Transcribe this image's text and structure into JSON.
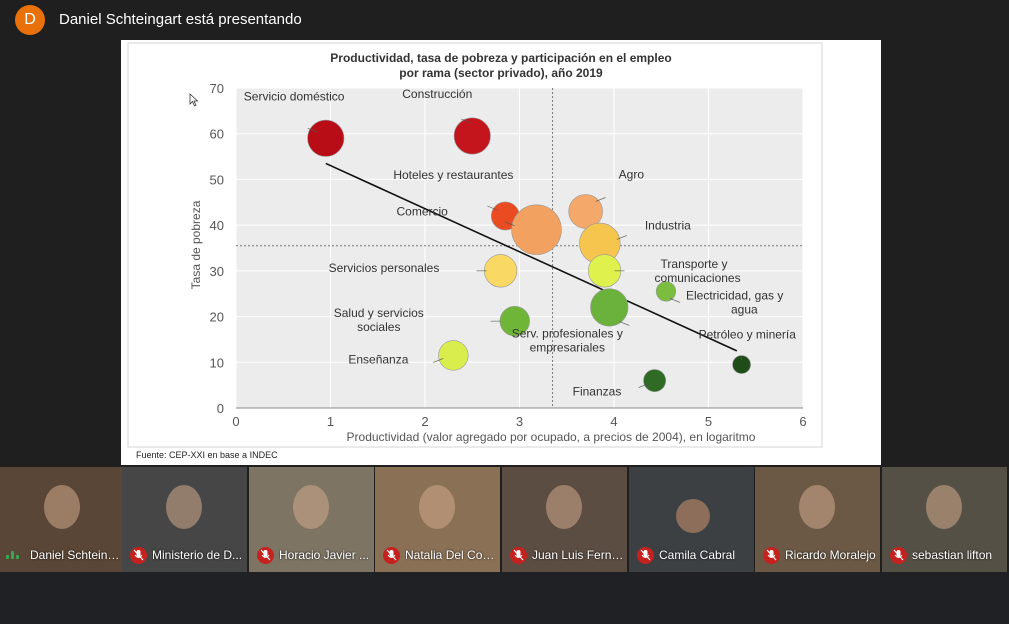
{
  "meeting": {
    "presenter_initial": "D",
    "presenter_text": "Daniel Schteingart está presentando"
  },
  "slide": {
    "title_line1": "Productividad, tasa de pobreza y participación en el empleo",
    "title_line2": "por rama (sector privado), año 2019",
    "source": "Fuente: CEP-XXI en base a INDEC"
  },
  "chart_data": {
    "type": "scatter",
    "xlabel": "Productividad (valor agregado por ocupado, a precios de 2004), en logaritmo",
    "ylabel": "Tasa de pobreza",
    "xlim": [
      0,
      6
    ],
    "ylim": [
      0,
      70
    ],
    "x_ticks": [
      "0",
      "1",
      "2",
      "3",
      "4",
      "5",
      "6"
    ],
    "y_ticks": [
      "0",
      "10",
      "20",
      "30",
      "40",
      "50",
      "60",
      "70"
    ],
    "grid": true,
    "reference_lines": {
      "vertical_x": 3.35,
      "horizontal_y": 35.5
    },
    "trendline": {
      "x": [
        0.95,
        5.3
      ],
      "y": [
        53.5,
        12.5
      ]
    },
    "points": [
      {
        "label": "Servicio doméstico",
        "x": 0.95,
        "y": 59,
        "size": 12,
        "color": "#b80d16"
      },
      {
        "label": "Construcción",
        "x": 2.5,
        "y": 59.5,
        "size": 12,
        "color": "#c4151d"
      },
      {
        "label": "Hoteles y restaurantes",
        "x": 2.85,
        "y": 42,
        "size": 6,
        "color": "#ea4b21"
      },
      {
        "label": "Comercio",
        "x": 3.18,
        "y": 39,
        "size": 26,
        "color": "#f2a160"
      },
      {
        "label": "Agro",
        "x": 3.7,
        "y": 43,
        "size": 10,
        "color": "#f4a86a"
      },
      {
        "label": "Industria",
        "x": 3.85,
        "y": 36,
        "size": 16,
        "color": "#f6c54e"
      },
      {
        "label": "Servicios personales",
        "x": 2.8,
        "y": 30,
        "size": 9,
        "color": "#f9d864"
      },
      {
        "label": "Transporte y comunicaciones",
        "x": 3.9,
        "y": 30,
        "size": 9,
        "color": "#dff14c"
      },
      {
        "label": "Electricidad, gas y agua",
        "x": 4.55,
        "y": 25.5,
        "size": 2,
        "color": "#7abd3f"
      },
      {
        "label": "Salud y servicios sociales",
        "x": 2.95,
        "y": 19,
        "size": 7,
        "color": "#6fb638"
      },
      {
        "label": "Serv. profesionales y empresariales",
        "x": 3.95,
        "y": 22,
        "size": 13,
        "color": "#6ab23b"
      },
      {
        "label": "Enseñanza",
        "x": 2.3,
        "y": 11.5,
        "size": 7,
        "color": "#d9ee4c"
      },
      {
        "label": "Petróleo y minería",
        "x": 5.35,
        "y": 9.5,
        "size": 1.5,
        "color": "#1e4d18"
      },
      {
        "label": "Finanzas",
        "x": 4.43,
        "y": 6,
        "size": 3,
        "color": "#2f6b25"
      }
    ]
  },
  "participants": [
    {
      "name": "Daniel Schteing...",
      "muted": false,
      "bg": "#5a4636"
    },
    {
      "name": "Ministerio de D...",
      "muted": true,
      "bg": "#464646"
    },
    {
      "name": "Horacio Javier ...",
      "muted": true,
      "bg": "#7d7464"
    },
    {
      "name": "Natalia Del Cogl...",
      "muted": true,
      "bg": "#8a7055"
    },
    {
      "name": "Juan Luis Ferna...",
      "muted": true,
      "bg": "#5c4d42"
    },
    {
      "name": "Camila Cabral",
      "muted": true,
      "bg": "#3c4043"
    },
    {
      "name": "Ricardo Moralejo",
      "muted": true,
      "bg": "#6b5845"
    },
    {
      "name": "sebastian lifton",
      "muted": true,
      "bg": "#545045"
    }
  ]
}
